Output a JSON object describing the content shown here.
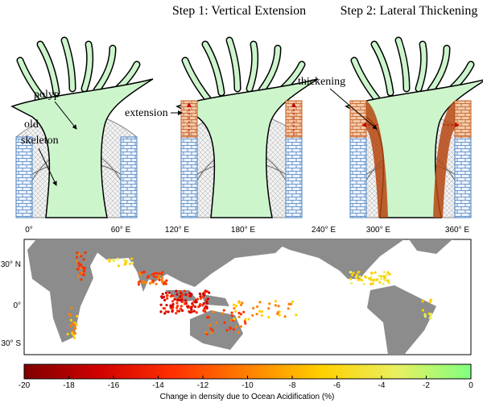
{
  "steps": [
    "Step 1: Vertical Extension",
    "Step 2: Lateral Thickening"
  ],
  "labels": {
    "polyp": "polyp",
    "old": "old",
    "skeleton": "skeleton",
    "extension": "extension",
    "thickening": "thickening"
  },
  "longitudes": [
    "0°",
    "60° E",
    "120° E",
    "180° E",
    "240° E",
    "300° E",
    "360° E"
  ],
  "latitudes": [
    "30° N",
    "0°",
    "30° S"
  ],
  "colorbar": {
    "label": "Change in density due to Ocean Acidification (%)",
    "range": [
      -20,
      0
    ],
    "ticks": [
      -20,
      -18,
      -16,
      -14,
      -12,
      -10,
      -8,
      -6,
      -4,
      -2,
      0
    ],
    "colors": [
      "#800000",
      "#d00000",
      "#ff3000",
      "#ff8000",
      "#ffd000",
      "#e8f060",
      "#80ff80"
    ]
  }
}
